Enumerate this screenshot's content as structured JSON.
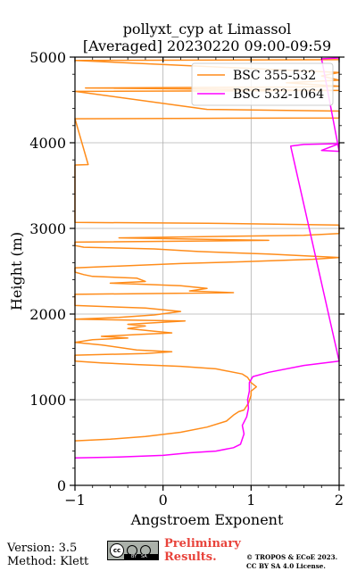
{
  "chart_data": {
    "type": "line",
    "title": "pollyxt_cyp at Limassol",
    "subtitle": "[Averaged] 20230220 09:00-09:59",
    "xlabel": "Angstroem Exponent",
    "ylabel": "Height (m)",
    "xlim": [
      -1,
      2
    ],
    "ylim": [
      0,
      5000
    ],
    "xticks": [
      "−1",
      "0",
      "1",
      "2"
    ],
    "yticks": [
      "0",
      "1000",
      "2000",
      "3000",
      "4000",
      "5000"
    ],
    "xtick_values": [
      -1,
      0,
      1,
      2
    ],
    "ytick_values": [
      0,
      1000,
      2000,
      3000,
      4000,
      5000
    ],
    "grid": true,
    "legend_position": "top-right",
    "series": [
      {
        "name": "BSC 355-532",
        "color": "#ff8c1a",
        "points": [
          [
            -1.0,
            520
          ],
          [
            -0.6,
            540
          ],
          [
            -0.2,
            570
          ],
          [
            0.2,
            620
          ],
          [
            0.5,
            680
          ],
          [
            0.72,
            750
          ],
          [
            0.8,
            820
          ],
          [
            0.86,
            860
          ],
          [
            0.92,
            880
          ],
          [
            0.97,
            960
          ],
          [
            1.0,
            1050
          ],
          [
            1.0,
            1100
          ],
          [
            1.06,
            1150
          ],
          [
            1.0,
            1200
          ],
          [
            0.96,
            1260
          ],
          [
            0.9,
            1300
          ],
          [
            0.6,
            1360
          ],
          [
            0.2,
            1390
          ],
          [
            -0.3,
            1410
          ],
          [
            -0.7,
            1430
          ],
          [
            -1.0,
            1450
          ],
          [
            -1.0,
            1520
          ],
          [
            -0.2,
            1540
          ],
          [
            0.1,
            1560
          ],
          [
            -0.3,
            1580
          ],
          [
            -0.7,
            1640
          ],
          [
            -1.0,
            1670
          ],
          [
            -0.8,
            1700
          ],
          [
            -0.4,
            1720
          ],
          [
            -0.7,
            1740
          ],
          [
            -0.3,
            1760
          ],
          [
            0.1,
            1780
          ],
          [
            -0.1,
            1800
          ],
          [
            -0.4,
            1830
          ],
          [
            -0.2,
            1860
          ],
          [
            -0.4,
            1880
          ],
          [
            0.25,
            1920
          ],
          [
            -1.0,
            1940
          ],
          [
            -0.5,
            1960
          ],
          [
            -0.1,
            1990
          ],
          [
            0.2,
            2030
          ],
          [
            -0.2,
            2070
          ],
          [
            -1.0,
            2100
          ],
          [
            -1.0,
            2230
          ],
          [
            0.8,
            2250
          ],
          [
            0.3,
            2270
          ],
          [
            0.5,
            2300
          ],
          [
            0.2,
            2330
          ],
          [
            -0.3,
            2350
          ],
          [
            -0.6,
            2360
          ],
          [
            -0.2,
            2380
          ],
          [
            -0.3,
            2420
          ],
          [
            -0.8,
            2440
          ],
          [
            -0.9,
            2460
          ],
          [
            -1.0,
            2490
          ],
          [
            -1.0,
            2540
          ],
          [
            -0.5,
            2560
          ],
          [
            0.2,
            2590
          ],
          [
            0.9,
            2610
          ],
          [
            1.7,
            2640
          ],
          [
            2.0,
            2660
          ],
          [
            1.2,
            2700
          ],
          [
            0.4,
            2730
          ],
          [
            -0.1,
            2760
          ],
          [
            -0.9,
            2780
          ],
          [
            -1.0,
            2800
          ],
          [
            -1.0,
            2840
          ],
          [
            1.2,
            2860
          ],
          [
            -0.5,
            2890
          ],
          [
            1.6,
            2920
          ],
          [
            2.0,
            2940
          ],
          [
            2.0,
            3040
          ],
          [
            0.5,
            3060
          ],
          [
            -1.0,
            3070
          ],
          [
            -1.0,
            3740
          ],
          [
            -0.85,
            3745
          ],
          [
            -1.0,
            4280
          ],
          [
            0.5,
            4285
          ],
          [
            2.0,
            4290
          ],
          [
            2.0,
            4370
          ],
          [
            1.2,
            4380
          ],
          [
            0.5,
            4390
          ],
          [
            -1.0,
            4600
          ],
          [
            2.0,
            4610
          ],
          [
            -0.88,
            4640
          ],
          [
            1.5,
            4650
          ],
          [
            2.0,
            4660
          ],
          [
            1.4,
            4700
          ],
          [
            2.0,
            4730
          ],
          [
            1.8,
            4780
          ],
          [
            2.0,
            4820
          ],
          [
            -1.0,
            4960
          ],
          [
            2.0,
            4970
          ]
        ]
      },
      {
        "name": "BSC 532-1064",
        "color": "#ff00ff",
        "points": [
          [
            -1.0,
            320
          ],
          [
            -0.5,
            330
          ],
          [
            0.0,
            350
          ],
          [
            0.3,
            380
          ],
          [
            0.6,
            400
          ],
          [
            0.8,
            440
          ],
          [
            0.88,
            480
          ],
          [
            0.92,
            600
          ],
          [
            0.9,
            700
          ],
          [
            0.95,
            800
          ],
          [
            0.97,
            900
          ],
          [
            0.96,
            1000
          ],
          [
            0.98,
            1100
          ],
          [
            0.98,
            1200
          ],
          [
            1.02,
            1270
          ],
          [
            1.2,
            1320
          ],
          [
            1.6,
            1400
          ],
          [
            2.0,
            1450
          ],
          [
            1.45,
            3960
          ],
          [
            1.6,
            3980
          ],
          [
            2.0,
            3990
          ],
          [
            1.8,
            3910
          ],
          [
            2.0,
            3900
          ],
          [
            1.8,
            4980
          ],
          [
            2.0,
            4990
          ]
        ]
      }
    ]
  },
  "footer": {
    "version": "Version: 3.5",
    "method": "Method: Klett",
    "preliminary_line1": "Preliminary",
    "preliminary_line2": "Results.",
    "copyright_line1": "© TROPOS & ECoE 2023.",
    "copyright_line2": "CC BY SA 4.0 License."
  }
}
